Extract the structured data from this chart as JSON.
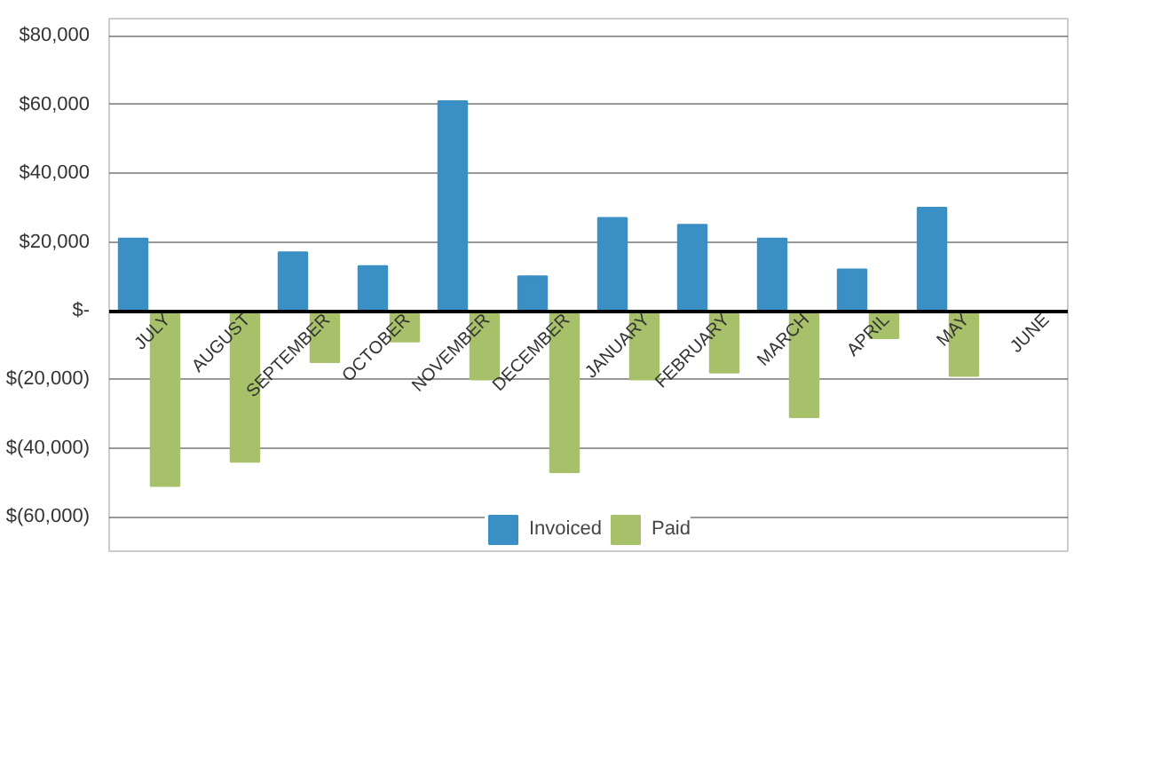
{
  "chart_data": {
    "type": "bar",
    "categories": [
      "JULY",
      "AUGUST",
      "SEPTEMBER",
      "OCTOBER",
      "NOVEMBER",
      "DECEMBER",
      "JANUARY",
      "FEBRUARY",
      "MARCH",
      "APRIL",
      "MAY",
      "JUNE"
    ],
    "series": [
      {
        "name": "Invoiced",
        "color": "#3a8fc4",
        "values": [
          21000,
          null,
          17000,
          13000,
          61000,
          10000,
          27000,
          25000,
          21000,
          12000,
          30000,
          null
        ]
      },
      {
        "name": "Paid",
        "color": "#a7c06a",
        "values": [
          -51000,
          -44000,
          -15000,
          -9000,
          -20000,
          -47000,
          -20000,
          -18000,
          -31000,
          -8000,
          -19000,
          null
        ]
      }
    ],
    "ylim": [
      -70000,
      85000
    ],
    "yticks": [
      {
        "value": -60000,
        "label": "$(60,000)"
      },
      {
        "value": -40000,
        "label": "$(40,000)"
      },
      {
        "value": -20000,
        "label": "$(20,000)"
      },
      {
        "value": 0,
        "label": "$-"
      },
      {
        "value": 20000,
        "label": "$20,000"
      },
      {
        "value": 40000,
        "label": "$40,000"
      },
      {
        "value": 60000,
        "label": "$60,000"
      },
      {
        "value": 80000,
        "label": "$80,000"
      }
    ],
    "grid": "y",
    "legend": "bottom"
  }
}
